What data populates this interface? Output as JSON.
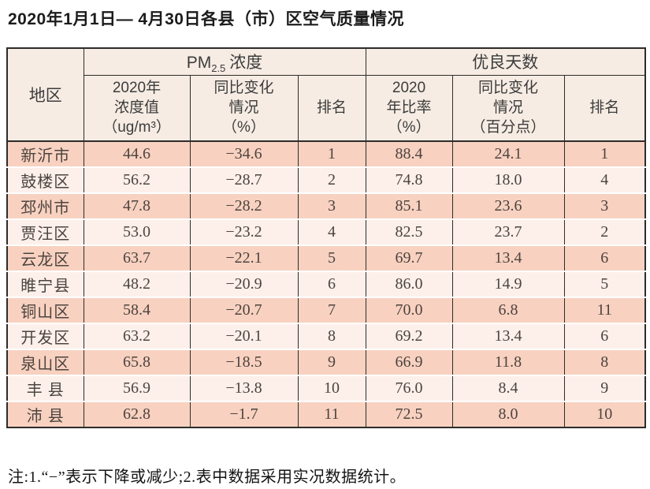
{
  "page": {
    "title": "2020年1月1日— 4月30日各县（市）区空气质量情况",
    "note": "注:1.“−”表示下降或减少;2.表中数据采用实况数据统计。"
  },
  "theme": {
    "border_color": "#2e2c2b",
    "header_bg": "#f7ece3",
    "row_odd_bg": "#f9d1c0",
    "row_even_bg": "#fdf0ea"
  },
  "table": {
    "corner_header": "地区",
    "groups": {
      "pm25": {
        "prefix": "PM",
        "sub": "2.5",
        "suffix": "浓度"
      },
      "good_days": {
        "label": "优良天数"
      }
    },
    "subheaders": [
      "2020年\n浓度值\n（ug/m³）",
      "同比变化\n情况\n（%）",
      "排名",
      "2020\n年比率\n（%）",
      "同比变化\n情况\n（百分点）",
      "排名"
    ],
    "rows": [
      [
        "新沂市",
        "44.6",
        "−34.6",
        "1",
        "88.4",
        "24.1",
        "1"
      ],
      [
        "鼓楼区",
        "56.2",
        "−28.7",
        "2",
        "74.8",
        "18.0",
        "4"
      ],
      [
        "邳州市",
        "47.8",
        "−28.2",
        "3",
        "85.1",
        "23.6",
        "3"
      ],
      [
        "贾汪区",
        "53.0",
        "−23.2",
        "4",
        "82.5",
        "23.7",
        "2"
      ],
      [
        "云龙区",
        "63.7",
        "−22.1",
        "5",
        "69.7",
        "13.4",
        "6"
      ],
      [
        "睢宁县",
        "48.2",
        "−20.9",
        "6",
        "86.0",
        "14.9",
        "5"
      ],
      [
        "铜山区",
        "58.4",
        "−20.7",
        "7",
        "70.0",
        "6.8",
        "11"
      ],
      [
        "开发区",
        "63.2",
        "−20.1",
        "8",
        "69.2",
        "13.4",
        "6"
      ],
      [
        "泉山区",
        "65.8",
        "−18.5",
        "9",
        "66.9",
        "11.8",
        "8"
      ],
      [
        "丰 县",
        "56.9",
        "−13.8",
        "10",
        "76.0",
        "8.4",
        "9"
      ],
      [
        "沛 县",
        "62.8",
        "−1.7",
        "11",
        "72.5",
        "8.0",
        "10"
      ]
    ]
  }
}
